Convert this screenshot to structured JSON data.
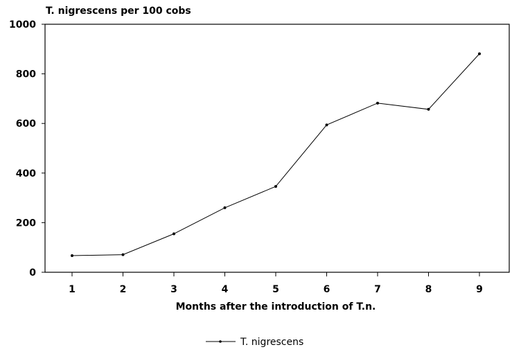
{
  "chart_data": {
    "type": "line",
    "title": "T. nigrescens per 100 cobs",
    "xlabel": "Months after the introduction of T.n.",
    "ylabel": "T. nigrescens per 100 cobs",
    "x": [
      1,
      2,
      3,
      4,
      5,
      6,
      7,
      8,
      9
    ],
    "xticks": [
      "1",
      "2",
      "3",
      "4",
      "5",
      "6",
      "7",
      "8",
      "9"
    ],
    "yticks": [
      "0",
      "200",
      "400",
      "600",
      "800",
      "1000"
    ],
    "ylim": [
      0,
      1000
    ],
    "grid": false,
    "legend_position": "bottom-center",
    "series": [
      {
        "name": "T. nigrescens",
        "values": [
          67,
          71,
          155,
          260,
          346,
          594,
          682,
          657,
          881
        ]
      }
    ]
  }
}
